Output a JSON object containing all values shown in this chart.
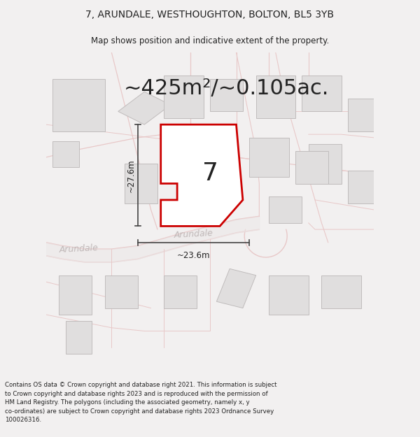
{
  "title": "7, ARUNDALE, WESTHOUGHTON, BOLTON, BL5 3YB",
  "subtitle": "Map shows position and indicative extent of the property.",
  "area_label": "~425m²/~0.105ac.",
  "number_label": "7",
  "dim_vertical": "~27.6m",
  "dim_horizontal": "~23.6m",
  "street_label_road": "Arundale",
  "street_label_left": "Arundale",
  "footer": "Contains OS data © Crown copyright and database right 2021. This information is subject\nto Crown copyright and database rights 2023 and is reproduced with the permission of\nHM Land Registry. The polygons (including the associated geometry, namely x, y\nco-ordinates) are subject to Crown copyright and database rights 2023 Ordnance Survey\n100026316.",
  "bg_color": "#f2f0f0",
  "building_fill": "#e0dede",
  "building_edge": "#c0bcbc",
  "road_fill": "#f2f0f0",
  "road_line_color": "#e8c8c8",
  "plot_fill": "#ffffff",
  "plot_edge": "#cc0000",
  "dim_color": "#444444",
  "text_dark": "#222222",
  "text_street": "#c0b8b8",
  "title_fs": 10,
  "subtitle_fs": 8.5,
  "area_fs": 22,
  "number_fs": 26,
  "dim_fs": 8.5,
  "street_fs": 9,
  "footer_fs": 6.2
}
